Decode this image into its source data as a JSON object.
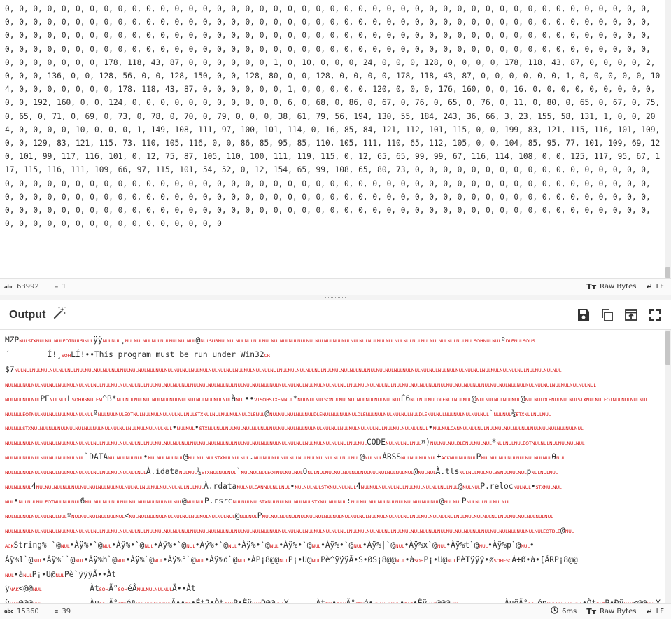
{
  "input": {
    "text": "0, 0, 0, 0, 0, 0, 0, 0, 0, 0, 0, 0, 0, 0, 0, 0, 0, 0, 0, 0, 0, 0, 0, 0, 0, 0, 0, 0, 0, 0, 0, 0, 0, 0, 0, 0, 0, 0, 0, 0, 0, 0, 0, 0, 0, 0, 0, 0, 0, 0, 0, 0, 0, 0, 0, 0, 0, 0, 0, 0, 0, 0, 0, 0, 0, 0, 0, 0, 0, 0, 0, 0, 0, 0, 0, 0, 0, 0, 0, 0, 0, 0, 0, 0, 0, 0, 0, 0, 0, 0, 0, 0, 0, 0, 0, 0, 0, 0, 0, 0, 0, 0, 0, 0, 0, 0, 0, 0, 0, 0, 0, 0, 0, 0, 0, 0, 0, 0, 0, 0, 0, 0, 0, 0, 0, 0, 0, 0, 0, 0, 0, 0, 0, 0, 0, 0, 0, 0, 0, 0, 0, 0, 0, 0, 0, 0, 0, 0, 0, 0, 0, 0, 0, 0, 0, 0, 0, 0, 0, 0, 0, 0, 0, 0, 0, 0, 0, 0, 0, 0, 0, 0, 0, 0, 0, 0, 0, 0, 0, 0, 0, 0, 0, 0, 0, 0, 0, 0, 0, 0, 0, 178, 118, 43, 87, 0, 0, 0, 0, 0, 0, 1, 0, 10, 0, 0, 0, 24, 0, 0, 0, 128, 0, 0, 0, 0, 178, 118, 43, 87, 0, 0, 0, 0, 2, 0, 0, 0, 136, 0, 0, 128, 56, 0, 0, 128, 150, 0, 0, 128, 80, 0, 0, 128, 0, 0, 0, 0, 178, 118, 43, 87, 0, 0, 0, 0, 0, 0, 1, 0, 0, 0, 0, 0, 104, 0, 0, 0, 0, 0, 0, 0, 178, 118, 43, 87, 0, 0, 0, 0, 0, 0, 1, 0, 0, 0, 0, 0, 120, 0, 0, 0, 176, 160, 0, 0, 16, 0, 0, 0, 0, 0, 0, 0, 0, 0, 0, 0, 192, 160, 0, 0, 124, 0, 0, 0, 0, 0, 0, 0, 0, 0, 0, 0, 6, 0, 68, 0, 86, 0, 67, 0, 76, 0, 65, 0, 76, 0, 11, 0, 80, 0, 65, 0, 67, 0, 75, 0, 65, 0, 71, 0, 69, 0, 73, 0, 78, 0, 70, 0, 79, 0, 0, 0, 38, 61, 79, 56, 194, 130, 55, 184, 243, 36, 66, 3, 23, 155, 58, 131, 1, 0, 0, 204, 0, 0, 0, 0, 10, 0, 0, 0, 1, 149, 108, 111, 97, 100, 101, 114, 0, 16, 85, 84, 121, 112, 101, 115, 0, 0, 199, 83, 121, 115, 116, 101, 109, 0, 0, 129, 83, 121, 115, 73, 110, 105, 116, 0, 0, 86, 85, 95, 85, 110, 105, 111, 110, 65, 112, 105, 0, 0, 104, 85, 95, 77, 101, 109, 69, 120, 101, 99, 117, 116, 101, 0, 12, 75, 87, 105, 110, 100, 111, 119, 115, 0, 12, 65, 65, 99, 99, 67, 116, 114, 108, 0, 0, 125, 117, 95, 67, 117, 115, 116, 111, 109, 66, 97, 115, 101, 54, 52, 0, 12, 154, 65, 99, 108, 65, 80, 73, 0, 0, 0, 0, 0, 0, 0, 0, 0, 0, 0, 0, 0, 0, 0, 0, 0, 0, 0, 0, 0, 0, 0, 0, 0, 0, 0, 0, 0, 0, 0, 0, 0, 0, 0, 0, 0, 0, 0, 0, 0, 0, 0, 0, 0, 0, 0, 0, 0, 0, 0, 0, 0, 0, 0, 0, 0, 0, 0, 0, 0, 0, 0, 0, 0, 0, 0, 0, 0, 0, 0, 0, 0, 0, 0, 0, 0, 0, 0, 0, 0, 0, 0, 0, 0, 0, 0, 0, 0, 0, 0, 0, 0, 0, 0, 0, 0, 0, 0, 0, 0, 0, 0, 0, 0, 0, 0, 0, 0, 0, 0, 0, 0, 0, 0, 0, 0, 0, 0, 0, 0, 0, 0, 0, 0, 0, 0, 0, 0, 0, 0, 0, 0, 0, 0, 0, 0, 0, 0, 0, 0, 0, 0, 0, 0, 0, 0, 0, 0, 0, 0, 0, 0, 0, 0, 0, 0, 0, 0, 0, 0, 0, 0, 0, 0, 0, 0, 0, 0, 0, 0"
  },
  "input_status": {
    "length_icon": "abc",
    "length": "63992",
    "lines_icon": "≡",
    "lines": "1",
    "raw_bytes_label": "Raw Bytes",
    "raw_bytes_icon": "Tт",
    "eol_label": "LF",
    "eol_icon": "↵"
  },
  "output": {
    "title": "Output",
    "magic_icon": "magic-wand-icon",
    "save_icon": "save-icon",
    "copy_icon": "copy-icon",
    "replace_input_icon": "replace-input-icon",
    "maximise_icon": "maximise-icon"
  },
  "output_status": {
    "length_icon": "abc",
    "length": "15360",
    "lines_icon": "≡",
    "lines": "39",
    "time_icon": "clock-icon",
    "time": "6ms",
    "raw_bytes_label": "Raw Bytes",
    "raw_bytes_icon": "Tт",
    "eol_label": "LF",
    "eol_icon": "↵"
  },
  "output_lines": [
    "MZP{NUL}{STX}{NUL}{NUL}{NUL}{EOT}{NUL}{SI}{NUL}ÿÿ{NUL}{NUL}¸{NUL}{NUL}{NUL}{NUL}{NUL}{NUL}{NUL}{NUL}@{NUL}{SUB}{NUL}{NUL}{NUL}{NUL}{NUL}{NUL}{NUL}{NUL}{NUL}{NUL}{NUL}{NUL}{NUL}{NUL}{NUL}{NUL}{NUL}{NUL}{NUL}{NUL}{NUL}{NUL}{NUL}{NUL}{NUL}{NUL}{NUL}{NUL}{NUL}{SOH}{NUL}{NUL}º{DLE}{NUL}{SO}{US}",
    "´\t Í!¸{SOH}LÍ!••This program must be run under Win32{CR}",
    "$7{NUL}{NUL}{NUL}{NUL}{NUL}{NUL}{NUL}{NUL}{NUL}{NUL}{NUL}{NUL}{NUL}{NUL}{NUL}{NUL}{NUL}{NUL}{NUL}{NUL}{NUL}{NUL}{NUL}{NUL}{NUL}{NUL}{NUL}{NUL}{NUL}{NUL}{NUL}{NUL}{NUL}{NUL}{NUL}{NUL}{NUL}{NUL}{NUL}{NUL}{NUL}{NUL}{NUL}{NUL}{NUL}{NUL}{NUL}{NUL}{NUL}{NUL}{NUL}{NUL}{NUL}{NUL}{NUL}{NUL}{NUL}{NUL}{NUL}{NUL}{NUL}{NUL}",
    "{NUL}{NUL}{NUL}{NUL}{NUL}{NUL}{NUL}{NUL}{NUL}{NUL}{NUL}{NUL}{NUL}{NUL}{NUL}{NUL}{NUL}{NUL}{NUL}{NUL}{NUL}{NUL}{NUL}{NUL}{NUL}{NUL}{NUL}{NUL}{NUL}{NUL}{NUL}{NUL}{NUL}{NUL}{NUL}{NUL}{NUL}{NUL}{NUL}{NUL}{NUL}{NUL}{NUL}{NUL}{NUL}{NUL}{NUL}{NUL}{NUL}{NUL}{NUL}{NUL}{NUL}{NUL}{NUL}{NUL}{NUL}{NUL}{NUL}{NUL}{NUL}{NUL}{NUL}{NUL}{NUL}{NUL}{NUL}",
    "{NUL}{NUL}{NUL}{NUL}PE{NUL}{NUL}L{SOH}{BS}{NUL}{EM}^B*{NUL}{NUL}{NUL}{NUL}{NUL}{NUL}{NUL}{NUL}{NUL}{NUL}{NUL}{NUL}{NUL}à{NUL}••{VT}{SOH}{STX}{EM}{NUL}*{NUL}{NUL}{NUL}{SO}{NUL}{NUL}{NUL}{NUL}{NUL}{NUL}{NUL}{NUL}È6{NUL}{NUL}{NUL}{DLE}{NUL}{NUL}{NUL}@{NUL}{NUL}{NUL}{NUL}{NUL}@{NUL}{NUL}{DLE}{NUL}{NUL}{NUL}{STX}{NUL}{NUL}{EOT}{NUL}{NUL}{NUL}{NUL}",
    "{NUL}{NUL}{EOT}{NUL}{NUL}{NUL}{NUL}{NUL}{NUL}{NUL}º{NUL}{NUL}{NUL}{EOT}{NUL}{NUL}{NUL}{NUL}{NUL}{NUL}{NUL}{STX}{NUL}{NUL}{NUL}{NUL}{NUL}{DLE}{NUL}@{NUL}{NUL}{NUL}{NUL}{NUL}{DLE}{NUL}{NUL}{NUL}{NUL}{DLE}{NUL}{NUL}{NUL}{NUL}{NUL}{NUL}{DLE}{NUL}{NUL}{NUL}{NUL}{NUL}{NUL}{NUL}`{NUL}{NUL}¾{ETX}{NUL}{NUL}{NUL}",
    "{NUL}{NUL}{STX}{NUL}{NUL}{NUL}{NUL}{NUL}{NUL}{NUL}{NUL}{NUL}{NUL}{NUL}{NUL}{NUL}{NUL}{NUL}{NUL}•{NUL}{NUL}•{STX}{NUL}{NUL}{NUL}{NUL}{NUL}{NUL}{NUL}{NUL}{NUL}{NUL}{NUL}{NUL}{NUL}{NUL}{NUL}{NUL}{NUL}{NUL}{NUL}{NUL}{NUL}{NUL}{NUL}{NUL}{NUL}•{NUL}{NUL}{CAN}{NUL}{NUL}{NUL}{NUL}{NUL}{NUL}{NUL}{NUL}{NUL}{NUL}{NUL}{NUL}{NUL}{NUL}",
    "{NUL}{NUL}{NUL}{NUL}{NUL}{NUL}{NUL}{NUL}{NUL}{NUL}{NUL}{NUL}{NUL}{NUL}{NUL}{NUL}{NUL}{NUL}{NUL}{NUL}{NUL}{NUL}{NUL}{NUL}{NUL}{NUL}{NUL}{NUL}{NUL}{NUL}{NUL}{NUL}{NUL}{NUL}{NUL}{NUL}{NUL}{NUL}{NUL}{NUL}{NUL}CODE{NUL}{NUL}{NUL}{NUL}¤){NUL}{NUL}{NUL}{DLE}{NUL}{NUL}{NUL}*{NUL}{NUL}{NUL}{EOT}{NUL}{NUL}{NUL}{NUL}{NUL}{NUL}",
    "{NUL}{NUL}{NUL}{NUL}{NUL}{NUL}{NUL}{NUL}{NUL}`DATA{NUL}{NUL}{NUL}{NUL}•{NUL}{NUL}{NUL}{NUL}@{NUL}{NUL}{NUL}{STX}{NUL}{NUL}{NUL}.{NUL}{NUL}{NUL}{NUL}{NUL}{NUL}{NUL}{NUL}{NUL}{NUL}{NUL}{NUL}@{NUL}{NUL}ÀBSS{NUL}{NUL}{NUL}{NUL}±{ACK}{NUL}{NUL}{NUL}P{NUL}{NUL}{NUL}{NUL}{NUL}{NUL}{NUL}{NUL}θ{NUL}",
    "{NUL}{NUL}{NUL}{NUL}{NUL}{NUL}{NUL}{NUL}{NUL}{NUL}{NUL}{NUL}{NUL}{NUL}{NUL}{NUL}À.idata{NUL}{NUL}¼{ETX}{NUL}{NUL}{NUL}`{NUL}{NUL}{NUL}{EOT}{NUL}{NUL}{NUL}θ{NUL}{NUL}{NUL}{NUL}{NUL}{NUL}{NUL}{NUL}{NUL}{NUL}{NUL}{NUL}@{NUL}{NUL}À.tls{NUL}{NUL}{NUL}{NUL}{BS}{NUL}{NUL}{NUL}p{NUL}{NUL}{NUL}",
    "{NUL}{NUL}{NUL}4{NUL}{NUL}{NUL}{NUL}{NUL}{NUL}{NUL}{NUL}{NUL}{NUL}{NUL}{NUL}{NUL}{NUL}{NUL}{NUL}{NUL}{NUL}{NUL}À.rdata{NUL}{NUL}{CAN}{NUL}{NUL}{NUL}•{NUL}{NUL}{NUL}{STX}{NUL}{NUL}{NUL}4{NUL}{NUL}{NUL}{NUL}{NUL}{NUL}{NUL}{NUL}{NUL}{NUL}{NUL}@{NUL}{NUL}P.reloc{NUL}{NUL}•{STX}{NUL}{NUL}",
    "{NUL}•{NUL}{NUL}{NUL}{EOT}{NUL}{NUL}{NUL}6{NUL}{NUL}{NUL}{NUL}{NUL}{NUL}{NUL}{NUL}{NUL}{NUL}{NUL}@{NUL}{NUL}P.rsrc{NUL}{NUL}{NUL}{STX}{NUL}{NUL}{NUL}{NUL}{NUL}{STX}{NUL}{NUL}{NUL}:{NUL}{NUL}{NUL}{NUL}{NUL}{NUL}{NUL}{NUL}{NUL}{NUL}@{NUL}{NUL}P{NUL}{NUL}{NUL}{NUL}{NUL}",
    "{NUL}{NUL}{NUL}{NUL}{NUL}{NUL}{NUL}º{NUL}{NUL}{NUL}{NUL}{NUL}{NUL}<{NUL}{NUL}{NUL}{NUL}{NUL}{NUL}{NUL}{NUL}{NUL}{NUL}{NUL}{NUL}@{NUL}{NUL}P{NUL}{NUL}{NUL}{NUL}{NUL}{NUL}{NUL}{NUL}{NUL}{NUL}{NUL}{NUL}{NUL}{NUL}{NUL}{NUL}{NUL}{NUL}{NUL}{NUL}{NUL}{NUL}{NUL}{NUL}{NUL}{NUL}{NUL}{NUL}{NUL}{NUL}{NUL}{NUL}{NUL}",
    "{NUL}{NUL}{NUL}{NUL}{NUL}{NUL}{NUL}{NUL}{NUL}{NUL}{NUL}{NUL}{NUL}{NUL}{NUL}{NUL}{NUL}{NUL}{NUL}{NUL}{NUL}{NUL}{NUL}{NUL}{NUL}{NUL}{NUL}{NUL}{NUL}{NUL}{NUL}{NUL}{NUL}{NUL}{NUL}{NUL}{NUL}{NUL}{NUL}{NUL}{NUL}{NUL}{NUL}{NUL}{NUL}{NUL}{NUL}{NUL}{NUL}{NUL}{NUL}{NUL}{NUL}{NUL}{NUL}{NUL}{NUL}{NUL}{NUL}{NUL}{NUL}{EOT}{DLE}@{NUL}",
    "{ACK}String% `@{NUL}•Àÿ%•`@{NUL}•Àÿ%•`@{NUL}•Àÿ%•`@{NUL}•Àÿ%•`@{NUL}•Àÿ%•`@{NUL}•Àÿ%•`@{NUL}•Àÿ%•`@{NUL}•Àÿ%|`@{NUL}•Àÿ%x`@{NUL}•Àÿ%t`@{NUL}•Àÿ%p`@{NUL}•",
    "Àÿ%l`@{NUL}•Àÿ%¨`@{NUL}•Àÿ%h`@{NUL}•Àÿ%`@{NUL}•Àÿ%°`@{NUL}•Àÿ%d`@{NUL}•ÀP¡8@@{NUL}P¡•U@{NUL}Pè^ÿÿÿÃ•S•ØS¡8@@{NUL}•à{SOH}P¡•U@{NUL}PèTÿÿÿ•ø{SOH}{ESC}À÷Ø•à•[ÃRP¡8@@",
    "{NUL}•à{NUL}P¡•U@{NUL}Pè`ÿÿÿÃ••Àt",
    "ÿ{NAK}<@@{NUL}\t  Àt{SOH}Ã°{SOH}éÂ{NUL}{NUL}{NUL}{NUL}Ã••Àt",
    "ÿ{NAK}@@@{NUL}\t  Àu{SOH}Ã°{STX}éª{NUL}{NUL}{NUL}{NUL}Ã••{BS}•Ét2•Òt{CAN}P•Èÿ{NAK}D@@{NUL}Y\t  Àt{EM}•{SOH}Ã°{STX}é•{NUL}{NUL}{NUL}•{DLE}•Èÿ{NAK}@@@{NUL}\t  ÀuëÃ°{SOH}ép{NUL}{NUL}{NUL}{NUL}•Òt{DLE}P•Ðÿ{NAK}<@@{NUL}Y"
  ]
}
